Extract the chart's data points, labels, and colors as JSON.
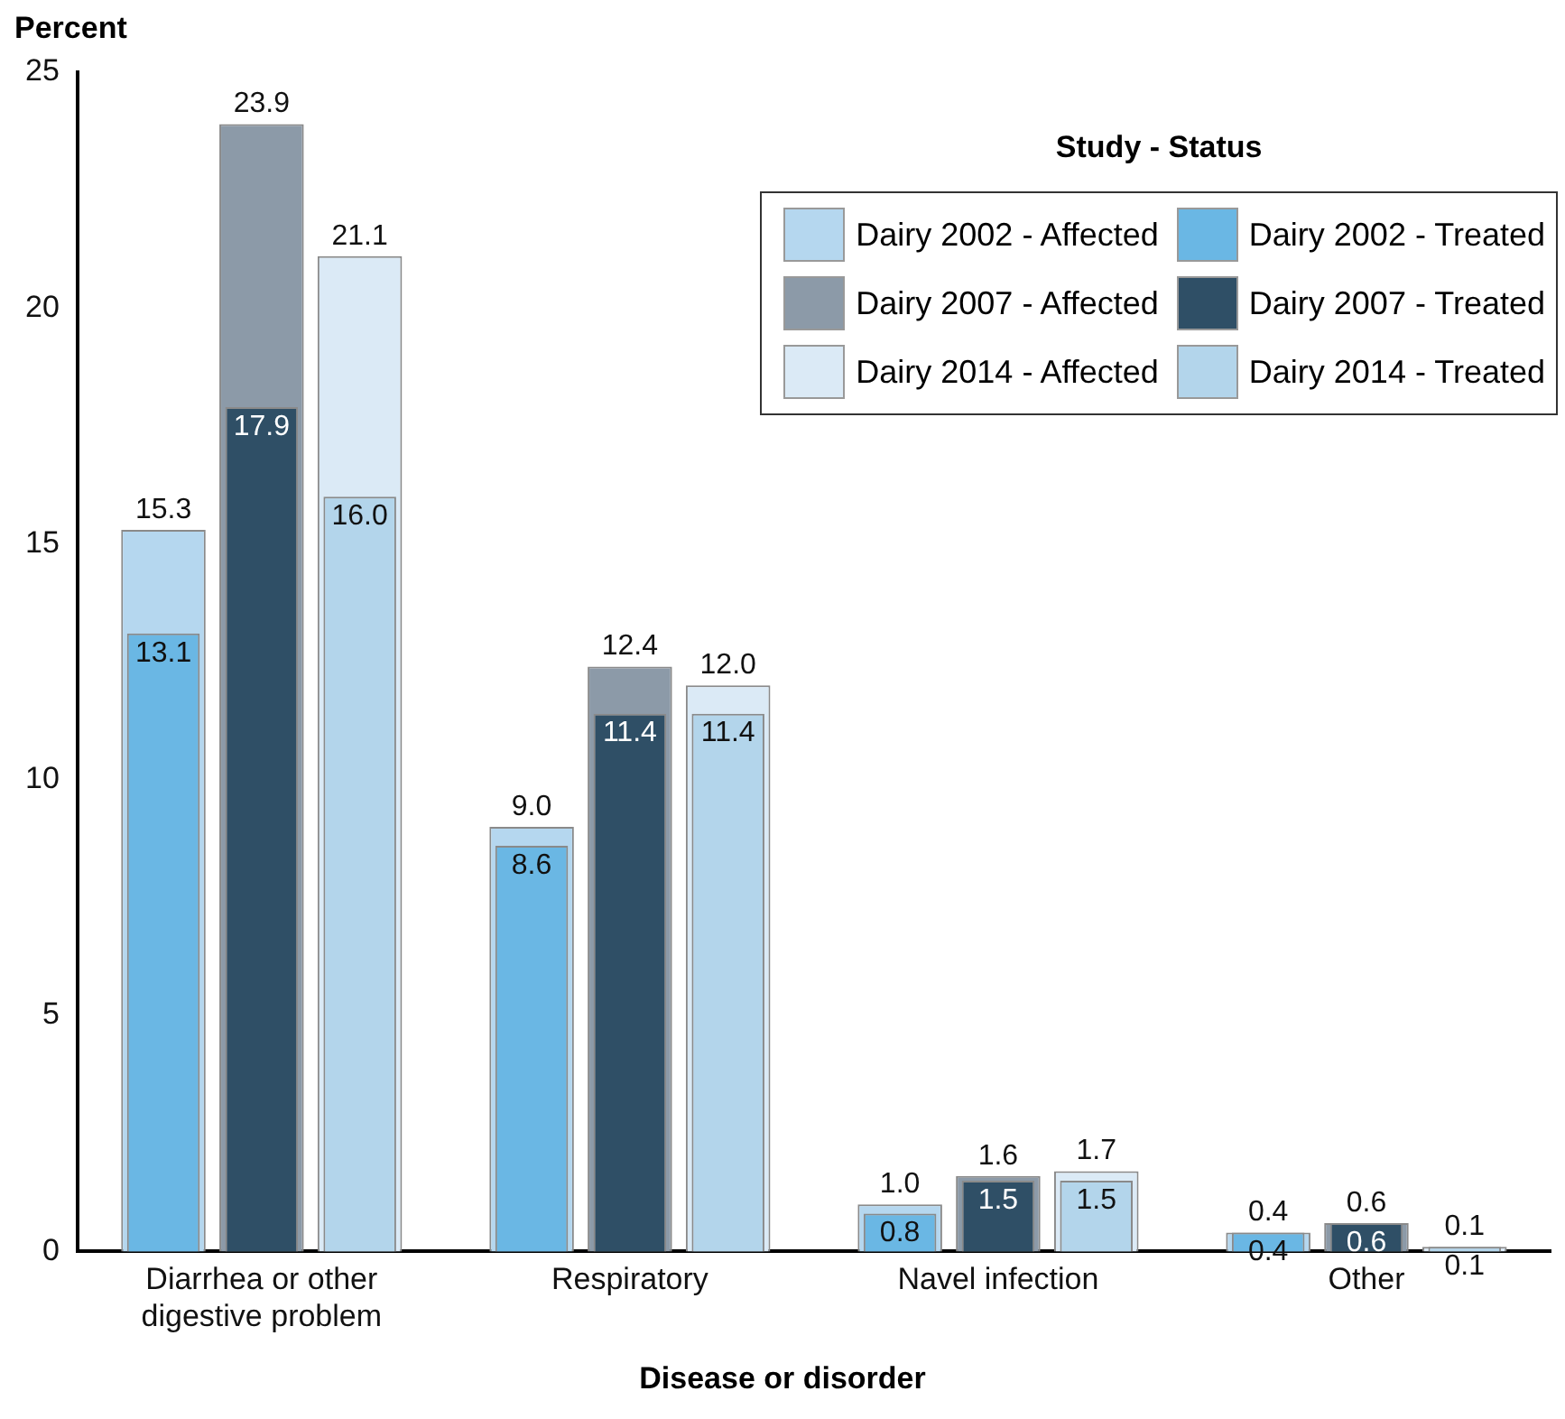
{
  "chart_data": {
    "type": "bar",
    "xlabel": "Disease or disorder",
    "ylabel": "Percent",
    "legend_title": "Study - Status",
    "categories": [
      "Diarrhea or other digestive problem",
      "Respiratory",
      "Navel infection",
      "Other"
    ],
    "series": [
      {
        "name": "Dairy 2002 - Treated",
        "color": "#6ab7e4",
        "values": [
          13.1,
          8.6,
          0.8,
          0.4
        ],
        "value_labels": [
          "13.1",
          "8.6",
          "0.8",
          "0.4"
        ]
      },
      {
        "name": "Dairy 2002 - Affected",
        "color": "#b5d7ef",
        "values": [
          15.3,
          9.0,
          1.0,
          0.4
        ],
        "value_labels": [
          "15.3",
          "9.0",
          "1.0",
          "0.4"
        ]
      },
      {
        "name": "Dairy 2007 - Treated",
        "color": "#2f4f66",
        "values": [
          17.9,
          11.4,
          1.5,
          0.6
        ],
        "value_labels": [
          "17.9",
          "11.4",
          "1.5",
          "0.6"
        ]
      },
      {
        "name": "Dairy 2007 - Affected",
        "color": "#8c9aa8",
        "values": [
          23.9,
          12.4,
          1.6,
          0.6
        ],
        "value_labels": [
          "23.9",
          "12.4",
          "1.6",
          "0.6"
        ]
      },
      {
        "name": "Dairy 2014 - Treated",
        "color": "#b3d5eb",
        "values": [
          16.0,
          11.4,
          1.5,
          0.1
        ],
        "value_labels": [
          "16.0",
          "11.4",
          "1.5",
          "0.1"
        ]
      },
      {
        "name": "Dairy 2014 - Affected",
        "color": "#dbeaf6",
        "values": [
          21.1,
          12.0,
          1.7,
          0.1
        ],
        "value_labels": [
          "21.1",
          "12.0",
          "1.7",
          "0.1"
        ]
      }
    ],
    "ylim": [
      0,
      25
    ],
    "yticks": [
      0,
      5,
      10,
      15,
      20,
      25
    ],
    "grid": false,
    "legend": "top right"
  }
}
